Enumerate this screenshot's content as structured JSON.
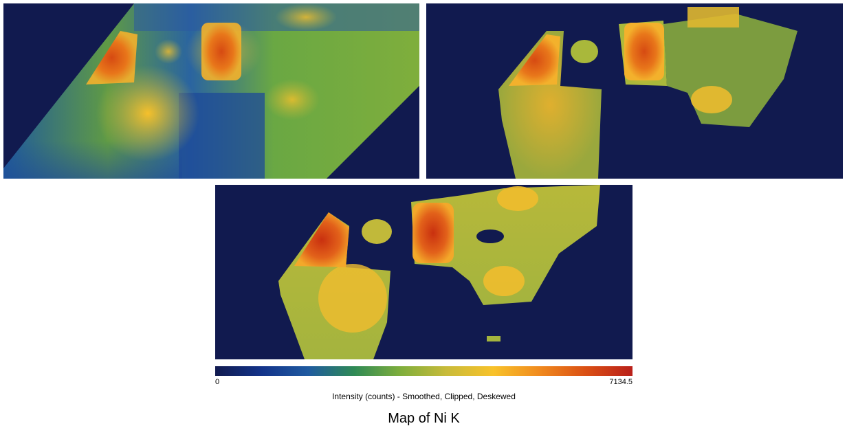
{
  "colorbar": {
    "min_label": "0",
    "max_label": "7134.5",
    "min_value": 0,
    "max_value": 7134.5,
    "caption": "Intensity (counts) - Smoothed, Clipped, Deskewed",
    "stops": [
      "#111a4f",
      "#13338a",
      "#1f5aa0",
      "#2f8a55",
      "#7fae3c",
      "#c9bb3a",
      "#f8c22a",
      "#f08a1e",
      "#da4f14",
      "#b9201a"
    ]
  },
  "title": "Map of Ni K",
  "colors": {
    "background": "#111a4f"
  }
}
